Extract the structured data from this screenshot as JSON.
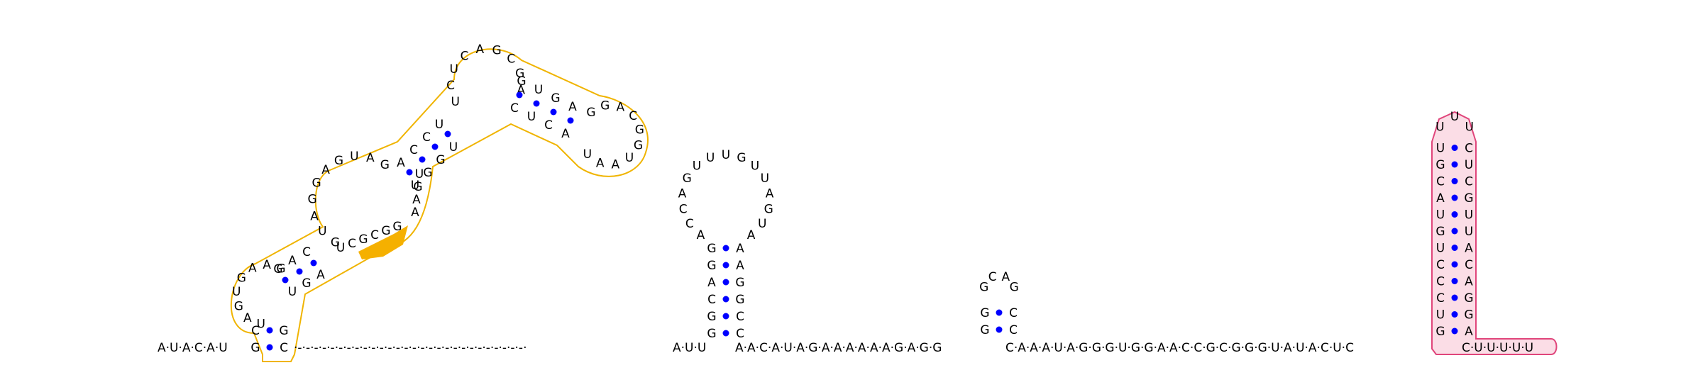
{
  "colors": {
    "pair_dot": "#0000ff",
    "helix_outline": "#f0b400",
    "highlight_fill": "#f5b000",
    "hairpin_outline": "#e0457b",
    "hairpin_fill": "#fbdde6",
    "backbone": "#000000"
  },
  "molecule": {
    "five_prime_tail": "A·U·A·C·A·U",
    "linker": "·-·-·-·-·-·-·-·-·-·-·-·-·-·-·-·-·-·-·-·-·-·-·-·-·-·-·-·-·",
    "segment_a": "A·U·U",
    "segment_b": "A·A·C·A·U·A·G·A·A·A·A·A·A·G·A·G·G",
    "segment_c": "C·A·A·A·U·A·G·G·G·U·G·G·A·A·C·C·G·C·G·G·G·U·A·U·A·C·U·C",
    "segment_d": "C·U·U·U·U·U"
  },
  "domain1": {
    "stem1_left": [
      "G",
      "C"
    ],
    "stem1_right": [
      "C",
      "G"
    ],
    "loop1": [
      "U",
      "A",
      "G",
      "U",
      "G",
      "A",
      "A",
      "G"
    ],
    "stem2_left": [
      "G",
      "A",
      "C"
    ],
    "stem2_right": [
      "U",
      "G",
      "A"
    ],
    "loop2_left": [
      "G",
      "G",
      "A",
      "U",
      "G"
    ],
    "loop2_top": [
      "A",
      "G",
      "U",
      "A",
      "G"
    ],
    "stem3_left": [
      "A",
      "C",
      "C",
      "U"
    ],
    "stem3_right": [
      "U",
      "G",
      "G",
      "U"
    ],
    "loop3_bottom": [
      "A",
      "A",
      "G",
      "U"
    ],
    "loop3_bottom2": [
      "U",
      "C",
      "G",
      "C",
      "G",
      "G"
    ],
    "loop3": [
      "U",
      "C",
      "U",
      "C",
      "A",
      "G",
      "C",
      "G",
      "A"
    ],
    "stem4_left": [
      "G",
      "U",
      "G",
      "A"
    ],
    "stem4_right": [
      "C",
      "U",
      "C",
      "A"
    ],
    "loop4": [
      "G",
      "G",
      "A",
      "C",
      "G",
      "G",
      "U",
      "A",
      "A",
      "U"
    ]
  },
  "hairpin2": {
    "stem_left": [
      "G",
      "G",
      "C",
      "A",
      "G",
      "G"
    ],
    "stem_right": [
      "C",
      "C",
      "G",
      "G",
      "A",
      "A"
    ],
    "loop": [
      "A",
      "C",
      "C",
      "A",
      "G",
      "U",
      "U",
      "U",
      "G",
      "U",
      "U",
      "A",
      "G",
      "U",
      "A"
    ]
  },
  "hairpin3": {
    "stem_left": [
      "G",
      "G"
    ],
    "stem_right": [
      "C",
      "C"
    ],
    "loop": [
      "G",
      "C",
      "A",
      "G"
    ]
  },
  "hairpin4": {
    "stem_left": [
      "G",
      "U",
      "C",
      "C",
      "C",
      "U",
      "G",
      "U",
      "A",
      "C",
      "G",
      "U"
    ],
    "stem_right": [
      "A",
      "G",
      "G",
      "A",
      "C",
      "A",
      "U",
      "U",
      "G",
      "C",
      "U",
      "C"
    ],
    "loop": [
      "U",
      "U",
      "U"
    ]
  }
}
